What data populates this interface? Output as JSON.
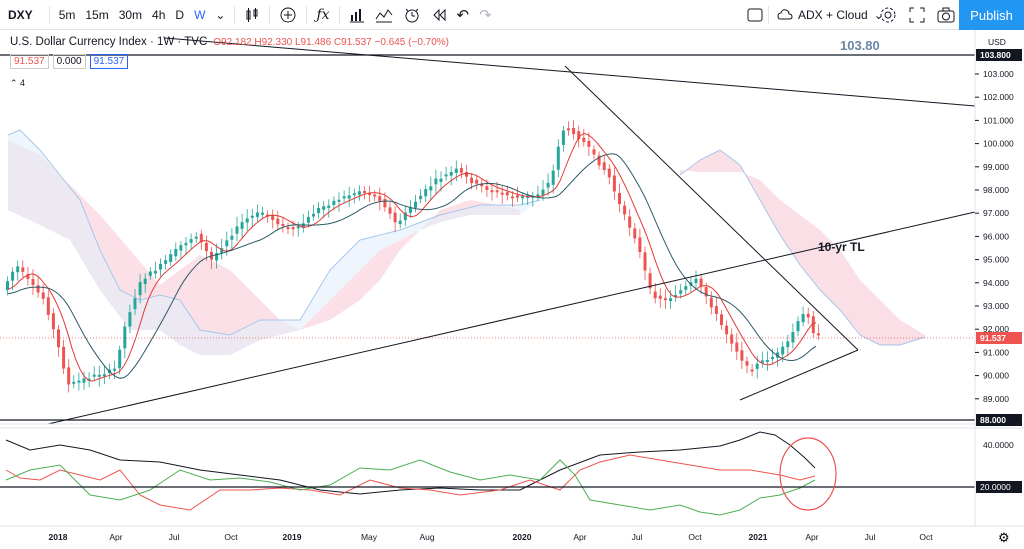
{
  "toolbar": {
    "symbol": "DXY",
    "intervals": [
      "5m",
      "15m",
      "30m",
      "4h",
      "D",
      "W"
    ],
    "active_interval": "W",
    "indicator_label": "ADX + Cloud",
    "publish_label": "Publish"
  },
  "legend": {
    "title": "U.S. Dollar Currency Index · 1W · TVC",
    "ohlc": "O92.182  H92.330  L91.486  C91.537  −0.645 (−0.70%)",
    "box_left": "91.537",
    "box_mid": "0.000",
    "box_right": "91.537",
    "collapse_count": "4"
  },
  "annotations": {
    "top_price": "103.80",
    "trendline_label": "10-yr TL"
  },
  "price_axis": {
    "labels": [
      "103.000",
      "102.000",
      "101.000",
      "100.000",
      "99.000",
      "98.000",
      "97.000",
      "96.000",
      "95.000",
      "94.000",
      "93.000",
      "92.000",
      "91.000",
      "90.000",
      "89.000"
    ],
    "currency": "USD",
    "last_price": "91.537",
    "line_top": "103.800",
    "line_bottom": "88.000"
  },
  "osc_axis": {
    "labels": [
      "40.0000",
      "20.0000"
    ]
  },
  "time_axis": {
    "labels": [
      "2018",
      "Apr",
      "Jul",
      "Oct",
      "2019",
      "May",
      "Aug",
      "2020",
      "Apr",
      "Jul",
      "Oct",
      "2021",
      "Apr",
      "Jul",
      "Oct"
    ]
  },
  "colors": {
    "up": "#26a69a",
    "down": "#ef5350",
    "cloud_red": "#fadbe3",
    "cloud_blue": "#e3eefa",
    "ma_red": "#e53935",
    "ma_dark": "#2a5a66",
    "last_price_line": "#ef5350"
  }
}
